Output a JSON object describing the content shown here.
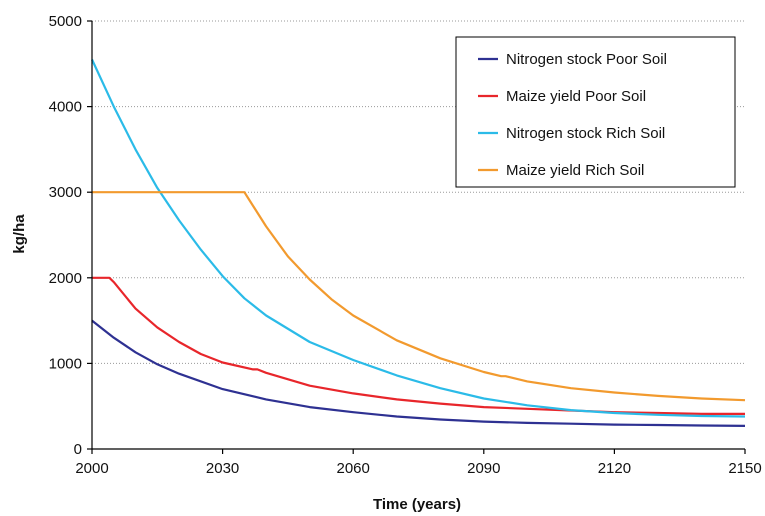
{
  "chart_data": {
    "type": "line",
    "title": "",
    "xlabel": "Time (years)",
    "ylabel": "kg/ha",
    "xlim": [
      2000,
      2150
    ],
    "ylim": [
      0,
      5000
    ],
    "xticks": [
      2000,
      2030,
      2060,
      2090,
      2120,
      2150
    ],
    "yticks": [
      0,
      1000,
      2000,
      3000,
      4000,
      5000
    ],
    "grid": "horizontal dotted",
    "legend_position": "top-right",
    "series": [
      {
        "name": "Nitrogen stock Poor Soil",
        "color": "#2e3192",
        "x": [
          2000,
          2005,
          2010,
          2015,
          2020,
          2030,
          2040,
          2050,
          2060,
          2070,
          2080,
          2090,
          2100,
          2110,
          2120,
          2130,
          2140,
          2150
        ],
        "y": [
          1500,
          1300,
          1130,
          990,
          880,
          700,
          580,
          490,
          430,
          380,
          345,
          320,
          305,
          295,
          285,
          280,
          275,
          270
        ]
      },
      {
        "name": "Maize yield Poor Soil",
        "color": "#e8262b",
        "x": [
          2000,
          2004,
          2005,
          2010,
          2015,
          2020,
          2025,
          2030,
          2037,
          2038,
          2040,
          2050,
          2060,
          2070,
          2080,
          2090,
          2100,
          2110,
          2120,
          2130,
          2140,
          2150
        ],
        "y": [
          2000,
          2000,
          1950,
          1640,
          1420,
          1250,
          1110,
          1010,
          930,
          930,
          890,
          740,
          650,
          580,
          530,
          490,
          470,
          450,
          430,
          420,
          410,
          410
        ]
      },
      {
        "name": "Nitrogen stock Rich Soil",
        "color": "#2bbbe8",
        "x": [
          2000,
          2005,
          2010,
          2015,
          2020,
          2025,
          2030,
          2035,
          2040,
          2050,
          2060,
          2070,
          2080,
          2090,
          2100,
          2110,
          2120,
          2130,
          2140,
          2150
        ],
        "y": [
          4550,
          4000,
          3500,
          3050,
          2670,
          2330,
          2020,
          1760,
          1560,
          1250,
          1040,
          860,
          710,
          590,
          510,
          455,
          420,
          400,
          385,
          380
        ]
      },
      {
        "name": "Maize yield Rich Soil",
        "color": "#f29a2e",
        "x": [
          2000,
          2035,
          2036,
          2040,
          2045,
          2050,
          2055,
          2060,
          2070,
          2080,
          2090,
          2094,
          2095,
          2100,
          2110,
          2120,
          2130,
          2140,
          2150
        ],
        "y": [
          3000,
          3000,
          2920,
          2600,
          2250,
          1980,
          1750,
          1560,
          1270,
          1060,
          900,
          850,
          850,
          790,
          710,
          660,
          620,
          590,
          570
        ]
      }
    ]
  }
}
